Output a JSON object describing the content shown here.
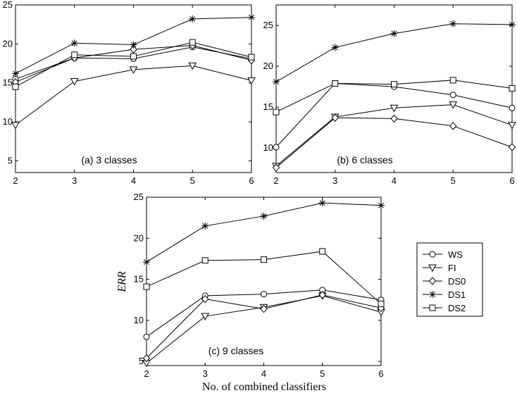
{
  "chart_data": [
    {
      "type": "line",
      "annotation": "(a) 3 classes",
      "x": [
        2,
        3,
        4,
        5,
        6
      ],
      "xlim": [
        2,
        6
      ],
      "ylim": [
        3.5,
        25
      ],
      "yticks": [
        5,
        10,
        15,
        20,
        25
      ],
      "xticks": [
        2,
        3,
        4,
        5,
        6
      ],
      "series": [
        {
          "name": "WS",
          "values": [
            15.5,
            18.2,
            18.1,
            19.6,
            18.1
          ]
        },
        {
          "name": "FI",
          "values": [
            9.6,
            15.2,
            16.7,
            17.2,
            15.3
          ]
        },
        {
          "name": "DS0",
          "values": [
            15.1,
            18.2,
            19.3,
            19.8,
            17.9
          ]
        },
        {
          "name": "DS1",
          "values": [
            16.2,
            20.1,
            19.9,
            23.2,
            23.4
          ]
        },
        {
          "name": "DS2",
          "values": [
            14.5,
            18.6,
            18.4,
            20.2,
            18.3
          ]
        }
      ]
    },
    {
      "type": "line",
      "annotation": "(b) 6 classes",
      "x": [
        2,
        3,
        4,
        5,
        6
      ],
      "xlim": [
        2,
        6
      ],
      "ylim": [
        7,
        27.5
      ],
      "yticks": [
        10,
        15,
        20,
        25
      ],
      "xticks": [
        2,
        3,
        4,
        5,
        6
      ],
      "series": [
        {
          "name": "WS",
          "values": [
            10.1,
            17.9,
            17.5,
            16.5,
            14.9
          ]
        },
        {
          "name": "FI",
          "values": [
            7.8,
            13.8,
            14.9,
            15.3,
            12.8
          ]
        },
        {
          "name": "DS0",
          "values": [
            7.6,
            13.7,
            13.6,
            12.7,
            10.1
          ]
        },
        {
          "name": "DS1",
          "values": [
            18.1,
            22.3,
            24.0,
            25.2,
            25.1
          ]
        },
        {
          "name": "DS2",
          "values": [
            14.4,
            17.9,
            17.8,
            18.3,
            17.3
          ]
        }
      ]
    },
    {
      "type": "line",
      "annotation": "(c) 9 classes",
      "x": [
        2,
        3,
        4,
        5,
        6
      ],
      "xlim": [
        2,
        6
      ],
      "ylim": [
        4.5,
        25
      ],
      "yticks": [
        5,
        10,
        15,
        20,
        25
      ],
      "xticks": [
        2,
        3,
        4,
        5,
        6
      ],
      "xlabel": "No. of combined classifiers",
      "ylabel": "ERR",
      "series": [
        {
          "name": "WS",
          "values": [
            8.0,
            13.0,
            13.2,
            13.7,
            12.5
          ]
        },
        {
          "name": "FI",
          "values": [
            4.8,
            10.5,
            11.6,
            13.0,
            11.0
          ]
        },
        {
          "name": "DS0",
          "values": [
            5.4,
            12.6,
            11.4,
            13.1,
            11.5
          ]
        },
        {
          "name": "DS1",
          "values": [
            17.1,
            21.5,
            22.7,
            24.3,
            24.0
          ]
        },
        {
          "name": "DS2",
          "values": [
            14.1,
            17.3,
            17.4,
            18.4,
            12.0
          ]
        }
      ]
    }
  ],
  "legend": {
    "placement": "right",
    "entries": [
      {
        "label": "WS",
        "marker": "circle"
      },
      {
        "label": "FI",
        "marker": "triangle-down"
      },
      {
        "label": "DS0",
        "marker": "diamond"
      },
      {
        "label": "DS1",
        "marker": "asterisk"
      },
      {
        "label": "DS2",
        "marker": "square"
      }
    ]
  },
  "colors": {
    "line": "#000000",
    "background": "#ffffff"
  }
}
